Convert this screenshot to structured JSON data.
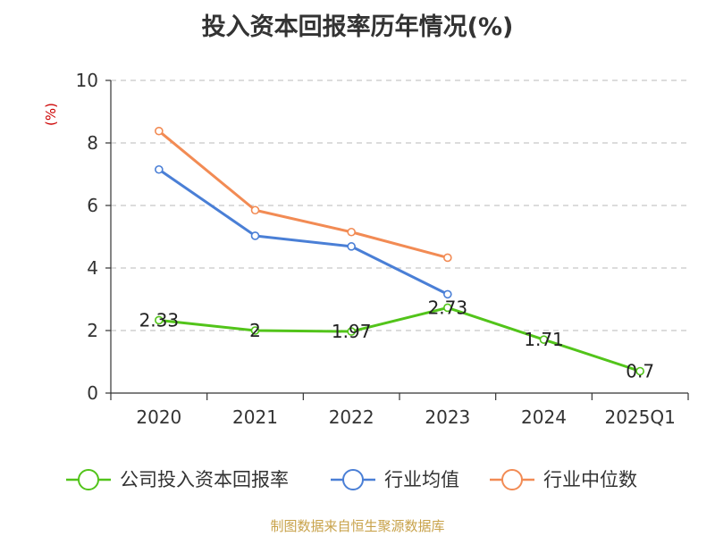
{
  "chart_data": {
    "type": "line",
    "title": "投入资本回报率历年情况(%)",
    "ylabel": "(%)",
    "xlabel": "",
    "categories": [
      "2020",
      "2021",
      "2022",
      "2023",
      "2024",
      "2025Q1"
    ],
    "ylim": [
      0,
      10
    ],
    "yticks": [
      0,
      2,
      4,
      6,
      8,
      10
    ],
    "grid": true,
    "legend_position": "bottom",
    "series": [
      {
        "name": "公司投入资本回报率",
        "color": "#52c41a",
        "values": [
          2.33,
          2,
          1.97,
          2.73,
          1.71,
          0.7
        ],
        "labels": [
          "2.33",
          "2",
          "1.97",
          "2.73",
          "1.71",
          "0.7"
        ]
      },
      {
        "name": "行业均值",
        "color": "#4a7fd6",
        "values": [
          7.15,
          5.03,
          4.69,
          3.16,
          null,
          null
        ]
      },
      {
        "name": "行业中位数",
        "color": "#f28b54",
        "values": [
          8.38,
          5.85,
          5.15,
          4.33,
          null,
          null
        ]
      }
    ]
  },
  "footer": {
    "source": "制图数据来自恒生聚源数据库"
  }
}
